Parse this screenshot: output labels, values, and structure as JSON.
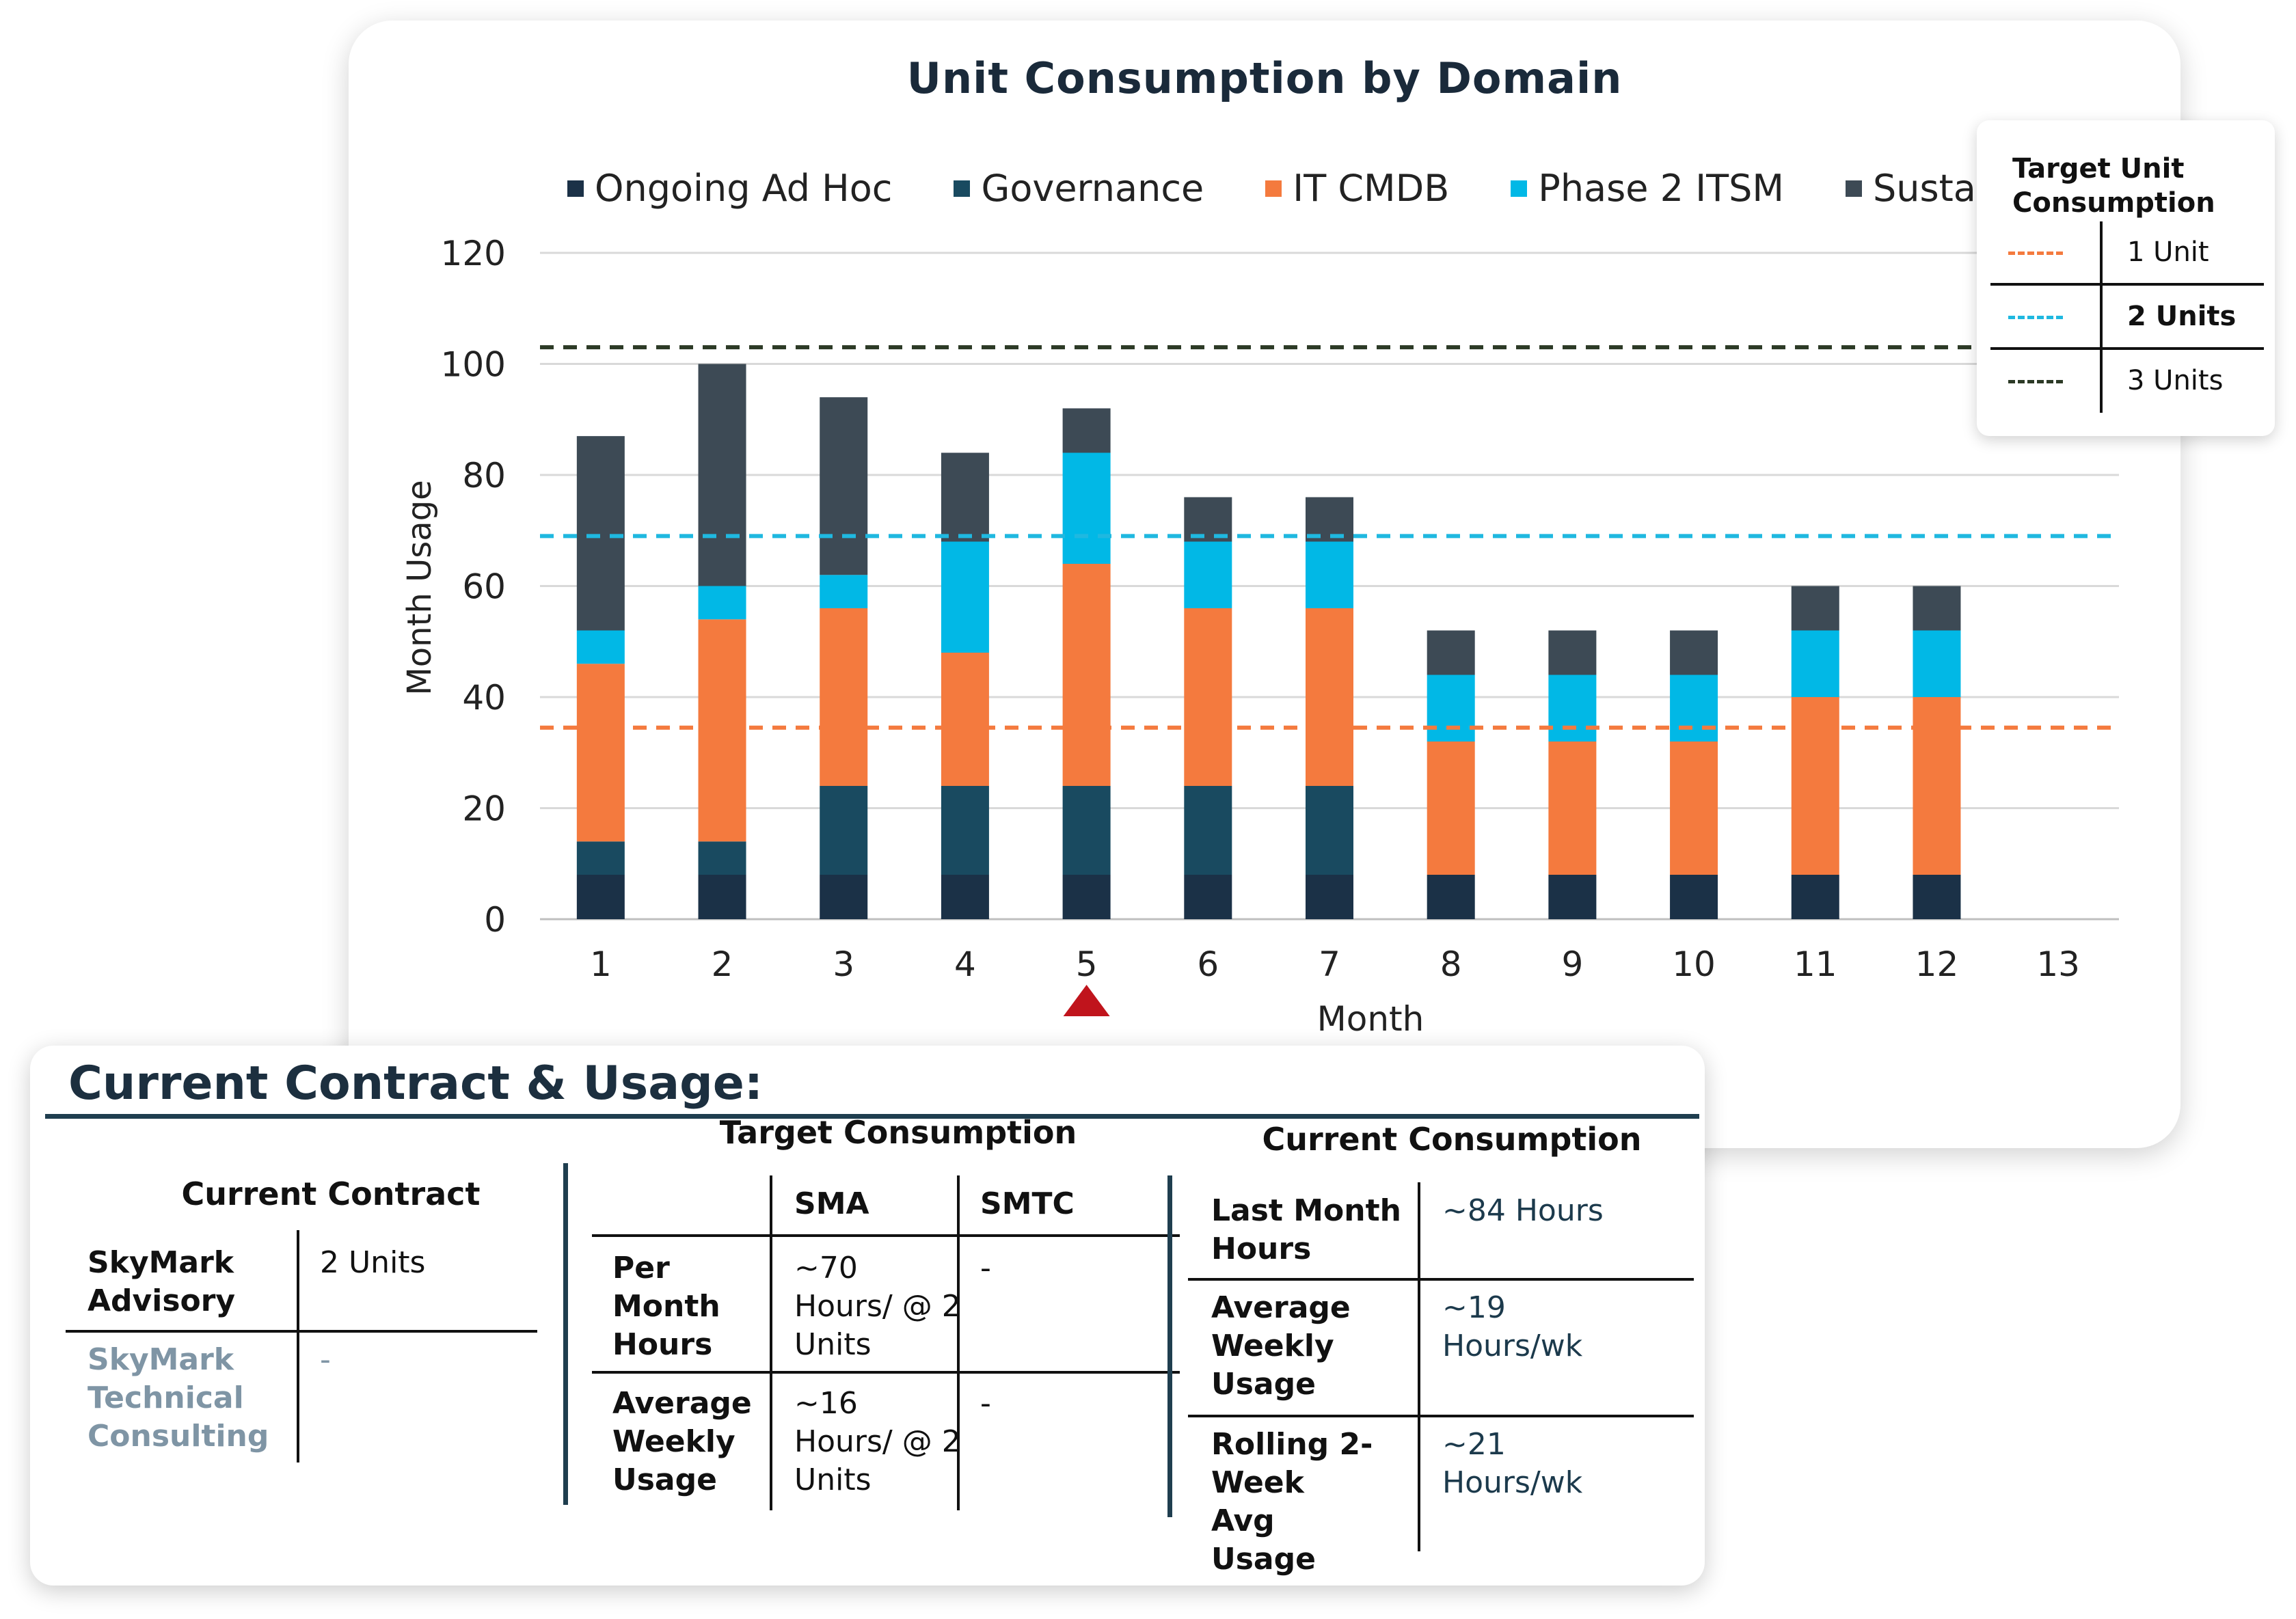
{
  "chart_data": {
    "type": "bar",
    "stacked": true,
    "title": "Unit Consumption by Domain",
    "xlabel": "Month",
    "ylabel": "Month Usage",
    "ylim": [
      0,
      120
    ],
    "yticks": [
      "0",
      "20",
      "40",
      "60",
      "80",
      "100",
      "120"
    ],
    "categories": [
      "1",
      "2",
      "3",
      "4",
      "5",
      "6",
      "7",
      "8",
      "9",
      "10",
      "11",
      "12",
      "13"
    ],
    "series": [
      {
        "name": "Ongoing Ad Hoc",
        "color": "#1b3147",
        "values": [
          8,
          8,
          8,
          8,
          8,
          8,
          8,
          8,
          8,
          8,
          8,
          8,
          0
        ]
      },
      {
        "name": "Governance",
        "color": "#194a60",
        "values": [
          6,
          6,
          16,
          16,
          16,
          16,
          16,
          0,
          0,
          0,
          0,
          0,
          0
        ]
      },
      {
        "name": "IT CMDB",
        "color": "#f47a3e",
        "values": [
          32,
          40,
          32,
          24,
          40,
          32,
          32,
          24,
          24,
          24,
          32,
          32,
          0
        ]
      },
      {
        "name": "Phase 2 ITSM",
        "color": "#01b8e6",
        "values": [
          6,
          6,
          6,
          20,
          20,
          12,
          12,
          12,
          12,
          12,
          12,
          12,
          0
        ]
      },
      {
        "name": "Sustainment",
        "color": "#3d4a55",
        "values": [
          35,
          40,
          32,
          16,
          8,
          8,
          8,
          8,
          8,
          8,
          8,
          8,
          0
        ]
      }
    ],
    "target_lines": [
      {
        "label": "1 Unit",
        "value": 34.5,
        "color": "#f47a3e"
      },
      {
        "label": "2 Units",
        "value": 69,
        "color": "#1fb8e0"
      },
      {
        "label": "3 Units",
        "value": 103,
        "color": "#2c3a26"
      }
    ],
    "marker_month": "5",
    "marker_color": "#c0141c",
    "grid": true,
    "legend_position": "top"
  },
  "target_legend": {
    "title": "Target Unit Consumption",
    "rows": [
      {
        "label": "1 Unit",
        "color": "#f47a3e",
        "bold": false
      },
      {
        "label": "2 Units",
        "color": "#1fb8e0",
        "bold": true
      },
      {
        "label": "3 Units",
        "color": "#2c3a26",
        "bold": false
      }
    ]
  },
  "info": {
    "title": "Current Contract & Usage:",
    "contract": {
      "heading": "Current Contract",
      "rows": [
        {
          "name": "SkyMark Advisory",
          "value": "2 Units"
        },
        {
          "name": "SkyMark Technical Consulting",
          "value": "-"
        }
      ]
    },
    "target": {
      "heading": "Target Consumption",
      "col1": "SMA",
      "col2": "SMTC",
      "rows": [
        {
          "name": "Per Month Hours",
          "sma": "~70 Hours/ @ 2 Units",
          "smtc": "-"
        },
        {
          "name": "Average Weekly Usage",
          "sma": "~16 Hours/ @ 2 Units",
          "smtc": "-"
        }
      ]
    },
    "current": {
      "heading": "Current Consumption",
      "rows": [
        {
          "name": "Last Month Hours",
          "value": "~84 Hours"
        },
        {
          "name": "Average Weekly Usage",
          "value": "~19 Hours/wk"
        },
        {
          "name": "Rolling 2-Week Avg Usage",
          "value": "~21 Hours/wk"
        }
      ]
    }
  }
}
